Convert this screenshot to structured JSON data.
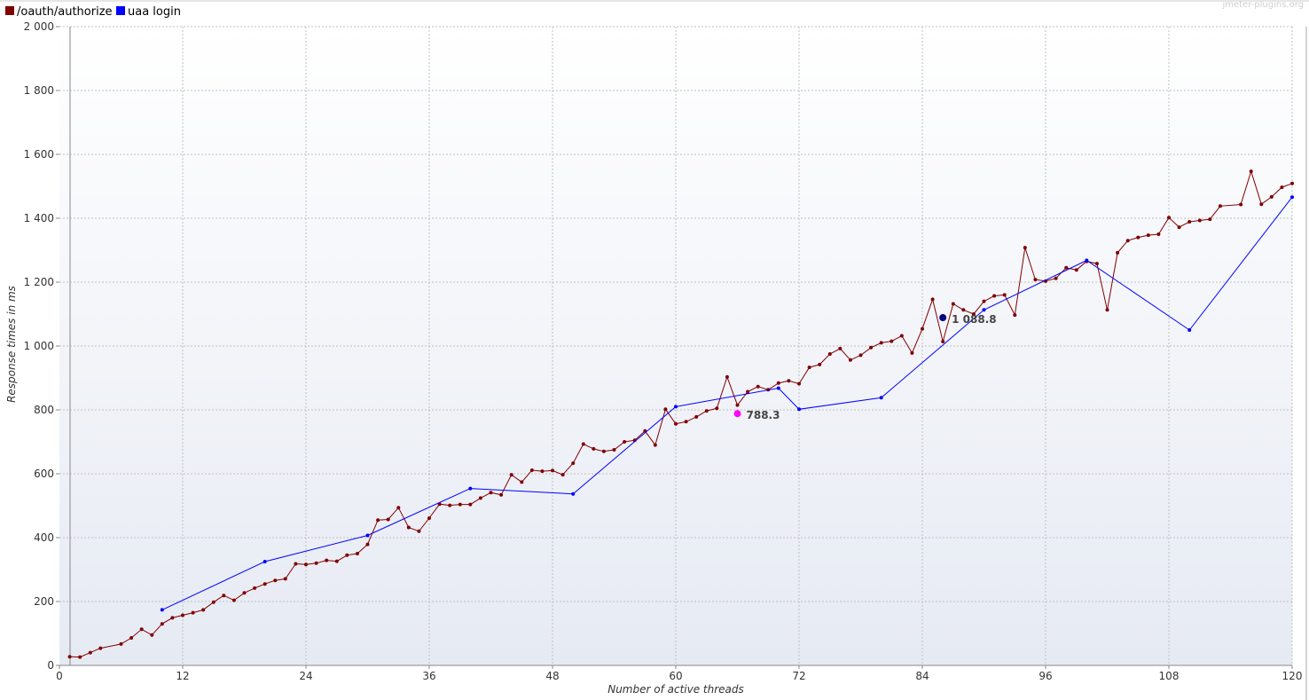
{
  "chart_data": {
    "type": "line",
    "xlabel": "Number of active threads",
    "ylabel": "Response times in ms",
    "xlim": [
      0,
      120
    ],
    "ylim": [
      0,
      2000
    ],
    "x_ticks": [
      "0",
      "12",
      "24",
      "36",
      "48",
      "60",
      "72",
      "84",
      "96",
      "108",
      "120"
    ],
    "y_ticks": [
      "0",
      "200",
      "400",
      "600",
      "800",
      "1 000",
      "1 200",
      "1 400",
      "1 600",
      "1 800",
      "2 000"
    ],
    "grid": true,
    "legend_position": "top-left",
    "watermark": "jmeter-plugins.org",
    "series": [
      {
        "name": "/oauth/authorize",
        "color": "#800000",
        "points": [
          [
            1,
            27
          ],
          [
            2,
            26
          ],
          [
            3,
            40
          ],
          [
            4,
            54
          ],
          [
            6,
            67
          ],
          [
            7,
            86
          ],
          [
            8,
            113
          ],
          [
            9,
            95
          ],
          [
            10,
            130
          ],
          [
            11,
            149
          ],
          [
            12,
            157
          ],
          [
            13,
            165
          ],
          [
            14,
            174
          ],
          [
            15,
            198
          ],
          [
            16,
            219
          ],
          [
            17,
            204
          ],
          [
            18,
            227
          ],
          [
            19,
            242
          ],
          [
            20,
            255
          ],
          [
            21,
            266
          ],
          [
            22,
            271
          ],
          [
            23,
            318
          ],
          [
            24,
            316
          ],
          [
            25,
            320
          ],
          [
            26,
            329
          ],
          [
            27,
            326
          ],
          [
            28,
            345
          ],
          [
            29,
            350
          ],
          [
            30,
            379
          ],
          [
            31,
            455
          ],
          [
            32,
            457
          ],
          [
            33,
            494
          ],
          [
            34,
            432
          ],
          [
            35,
            420
          ],
          [
            36,
            461
          ],
          [
            37,
            505
          ],
          [
            38,
            501
          ],
          [
            39,
            504
          ],
          [
            40,
            504
          ],
          [
            41,
            524
          ],
          [
            42,
            541
          ],
          [
            43,
            534
          ],
          [
            44,
            597
          ],
          [
            45,
            574
          ],
          [
            46,
            611
          ],
          [
            47,
            608
          ],
          [
            48,
            610
          ],
          [
            49,
            597
          ],
          [
            50,
            633
          ],
          [
            51,
            693
          ],
          [
            52,
            678
          ],
          [
            53,
            670
          ],
          [
            54,
            675
          ],
          [
            55,
            700
          ],
          [
            56,
            705
          ],
          [
            57,
            734
          ],
          [
            58,
            690
          ],
          [
            59,
            802
          ],
          [
            60,
            756
          ],
          [
            61,
            763
          ],
          [
            62,
            778
          ],
          [
            63,
            797
          ],
          [
            64,
            805
          ],
          [
            65,
            903
          ],
          [
            66,
            815
          ],
          [
            67,
            857
          ],
          [
            68,
            873
          ],
          [
            69,
            863
          ],
          [
            70,
            884
          ],
          [
            71,
            891
          ],
          [
            72,
            882
          ],
          [
            73,
            933
          ],
          [
            74,
            942
          ],
          [
            75,
            975
          ],
          [
            76,
            992
          ],
          [
            77,
            956
          ],
          [
            78,
            971
          ],
          [
            79,
            995
          ],
          [
            80,
            1010
          ],
          [
            81,
            1015
          ],
          [
            82,
            1032
          ],
          [
            83,
            978
          ],
          [
            84,
            1054
          ],
          [
            85,
            1146
          ],
          [
            86,
            1014
          ],
          [
            87,
            1132
          ],
          [
            88,
            1113
          ],
          [
            89,
            1100
          ],
          [
            90,
            1140
          ],
          [
            91,
            1157
          ],
          [
            92,
            1160
          ],
          [
            93,
            1097
          ],
          [
            94,
            1308
          ],
          [
            95,
            1208
          ],
          [
            96,
            1203
          ],
          [
            97,
            1212
          ],
          [
            98,
            1245
          ],
          [
            99,
            1238
          ],
          [
            100,
            1265
          ],
          [
            101,
            1258
          ],
          [
            102,
            1113
          ],
          [
            103,
            1292
          ],
          [
            104,
            1330
          ],
          [
            105,
            1340
          ],
          [
            106,
            1347
          ],
          [
            107,
            1350
          ],
          [
            108,
            1402
          ],
          [
            109,
            1372
          ],
          [
            110,
            1389
          ],
          [
            111,
            1393
          ],
          [
            112,
            1397
          ],
          [
            113,
            1438
          ],
          [
            115,
            1443
          ],
          [
            116,
            1547
          ],
          [
            117,
            1444
          ],
          [
            118,
            1467
          ],
          [
            119,
            1497
          ],
          [
            120,
            1509
          ]
        ]
      },
      {
        "name": "uaa login",
        "color": "#0000ff",
        "points": [
          [
            10,
            174
          ],
          [
            20,
            325
          ],
          [
            30,
            407
          ],
          [
            40,
            554
          ],
          [
            50,
            537
          ],
          [
            60,
            810
          ],
          [
            70,
            868
          ],
          [
            72,
            802
          ],
          [
            80,
            838
          ],
          [
            90,
            1113
          ],
          [
            100,
            1268
          ],
          [
            110,
            1050
          ],
          [
            120,
            1466
          ]
        ]
      }
    ],
    "annotations": [
      {
        "x": 86,
        "y": 1088.8,
        "label": "1 088.8",
        "color": "#000080"
      },
      {
        "x": 66,
        "y": 788.3,
        "label": "788.3",
        "color": "#ff00ff"
      }
    ]
  }
}
